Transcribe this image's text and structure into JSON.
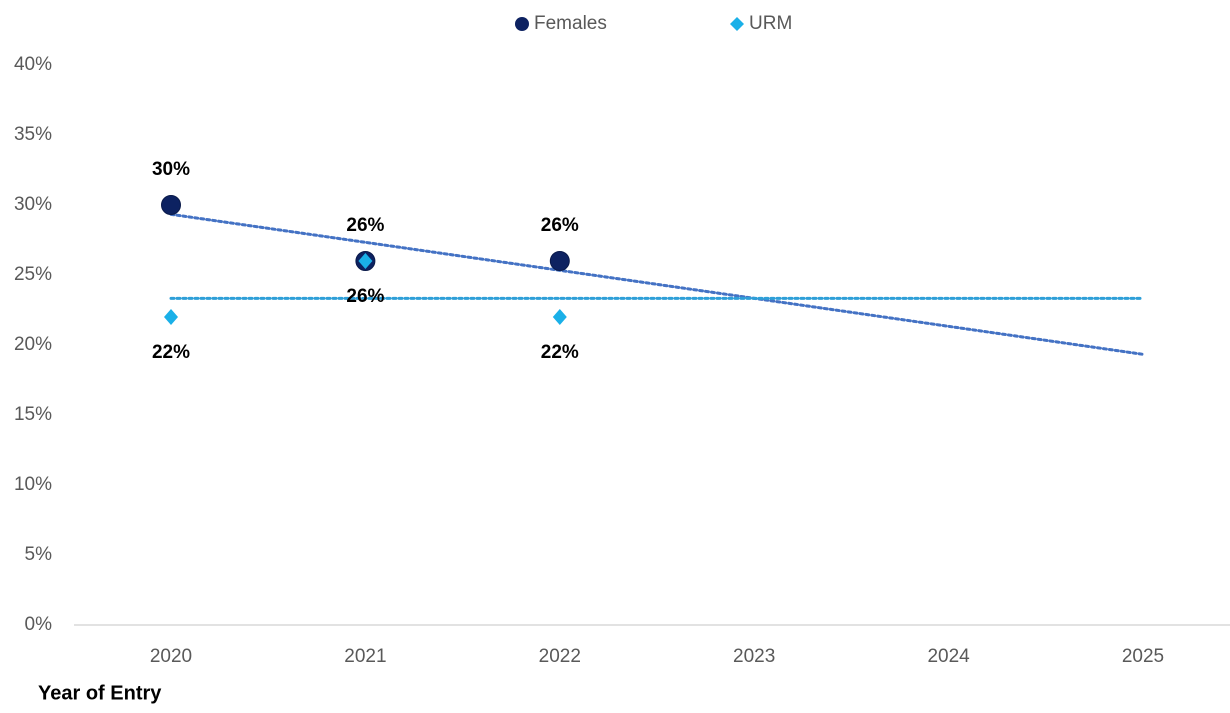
{
  "chart_data": {
    "type": "scatter",
    "x_label": "Year of Entry",
    "categories": [
      "2020",
      "2021",
      "2022",
      "2023",
      "2024",
      "2025"
    ],
    "series": [
      {
        "name": "Females",
        "color": "#0d2261",
        "marker": "circle",
        "trendline": "linear",
        "trendline_color": "#4472c4",
        "values": [
          30,
          26,
          26,
          null,
          null,
          null
        ],
        "value_labels": [
          "30%",
          "26%",
          "26%",
          null,
          null,
          null
        ]
      },
      {
        "name": "URM",
        "color": "#1ab0e8",
        "marker": "diamond",
        "trendline": "linear",
        "trendline_color": "#2e9fd8",
        "values": [
          22,
          26,
          22,
          null,
          null,
          null
        ],
        "value_labels": [
          "22%",
          "26%",
          "22%",
          null,
          null,
          null
        ]
      }
    ],
    "ylim": [
      0,
      40
    ],
    "yticks": [
      {
        "value": 0,
        "label": "0%"
      },
      {
        "value": 5,
        "label": "5%"
      },
      {
        "value": 10,
        "label": "10%"
      },
      {
        "value": 15,
        "label": "15%"
      },
      {
        "value": 20,
        "label": "20%"
      },
      {
        "value": 25,
        "label": "25%"
      },
      {
        "value": 30,
        "label": "30%"
      },
      {
        "value": 35,
        "label": "35%"
      },
      {
        "value": 40,
        "label": "40%"
      }
    ],
    "legend": "top"
  }
}
